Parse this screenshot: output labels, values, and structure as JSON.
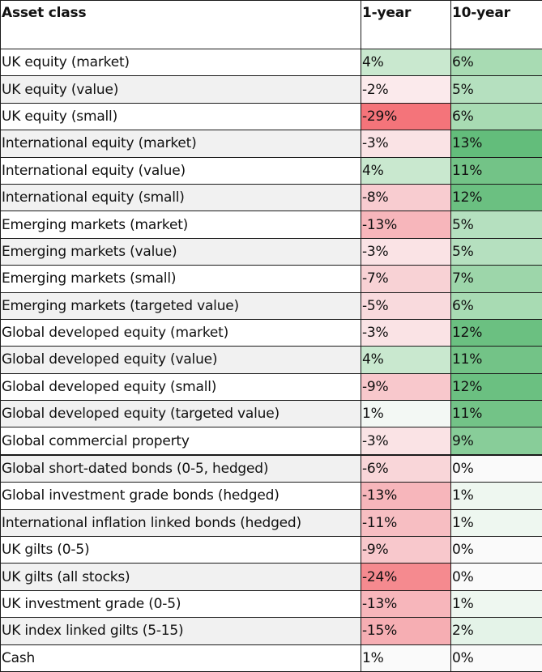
{
  "table": {
    "headers": [
      "Asset class",
      "1-year",
      "10-year"
    ],
    "rows": [
      {
        "asset": "UK equity (market)",
        "y1": "4%",
        "y10": "6%",
        "y1_color": "#c9e8cf",
        "y10_color": "#a8dbb3"
      },
      {
        "asset": "UK equity (value)",
        "y1": "-2%",
        "y10": "5%",
        "y1_color": "#fbeaec",
        "y10_color": "#b5e0bf"
      },
      {
        "asset": "UK equity (small)",
        "y1": "-29%",
        "y10": "6%",
        "y1_color": "#f4747a",
        "y10_color": "#a8dbb3"
      },
      {
        "asset": "International equity (market)",
        "y1": "-3%",
        "y10": "13%",
        "y1_color": "#fae3e5",
        "y10_color": "#63bd7b"
      },
      {
        "asset": "International equity (value)",
        "y1": "4%",
        "y10": "11%",
        "y1_color": "#c9e8cf",
        "y10_color": "#73c387"
      },
      {
        "asset": "International equity (small)",
        "y1": "-8%",
        "y10": "12%",
        "y1_color": "#f8ccd0",
        "y10_color": "#6bc081"
      },
      {
        "asset": "Emerging markets (market)",
        "y1": "-13%",
        "y10": "5%",
        "y1_color": "#f7b6bb",
        "y10_color": "#b5e0bf"
      },
      {
        "asset": "Emerging markets (value)",
        "y1": "-3%",
        "y10": "5%",
        "y1_color": "#fae3e5",
        "y10_color": "#b5e0bf"
      },
      {
        "asset": "Emerging markets (small)",
        "y1": "-7%",
        "y10": "7%",
        "y1_color": "#f8d2d5",
        "y10_color": "#9dd6aa"
      },
      {
        "asset": "Emerging markets (targeted value)",
        "y1": "-5%",
        "y10": "6%",
        "y1_color": "#f9dadd",
        "y10_color": "#a8dbb3"
      },
      {
        "asset": "Global developed equity (market)",
        "y1": "-3%",
        "y10": "12%",
        "y1_color": "#fae3e5",
        "y10_color": "#6bc081"
      },
      {
        "asset": "Global developed equity (value)",
        "y1": "4%",
        "y10": "11%",
        "y1_color": "#c9e8cf",
        "y10_color": "#73c387"
      },
      {
        "asset": "Global developed equity (small)",
        "y1": "-9%",
        "y10": "12%",
        "y1_color": "#f8c8cc",
        "y10_color": "#6bc081"
      },
      {
        "asset": "Global developed equity (targeted value)",
        "y1": "1%",
        "y10": "11%",
        "y1_color": "#f3f8f4",
        "y10_color": "#73c387"
      },
      {
        "asset": "Global commercial property",
        "y1": "-3%",
        "y10": "9%",
        "y1_color": "#fae3e5",
        "y10_color": "#88cd99"
      },
      {
        "asset": "Global short-dated bonds (0-5, hedged)",
        "y1": "-6%",
        "y10": "0%",
        "y1_color": "#f9d6d9",
        "y10_color": "#fafafa"
      },
      {
        "asset": "Global investment grade bonds (hedged)",
        "y1": "-13%",
        "y10": "1%",
        "y1_color": "#f7b6bb",
        "y10_color": "#eef7f0"
      },
      {
        "asset": "International inflation linked bonds (hedged)",
        "y1": "-11%",
        "y10": "1%",
        "y1_color": "#f7bec2",
        "y10_color": "#eef7f0"
      },
      {
        "asset": "UK gilts (0-5)",
        "y1": "-9%",
        "y10": "0%",
        "y1_color": "#f8c8cc",
        "y10_color": "#fafafa"
      },
      {
        "asset": "UK gilts (all stocks)",
        "y1": "-24%",
        "y10": "0%",
        "y1_color": "#f58a8f",
        "y10_color": "#fafafa"
      },
      {
        "asset": "UK investment grade (0-5)",
        "y1": "-13%",
        "y10": "1%",
        "y1_color": "#f7b6bb",
        "y10_color": "#eef7f0"
      },
      {
        "asset": "UK index linked gilts (5-15)",
        "y1": "-15%",
        "y10": "2%",
        "y1_color": "#f6aeb3",
        "y10_color": "#e4f3e8"
      },
      {
        "asset": "Cash",
        "y1": "1%",
        "y10": "0%",
        "y1_color": "#fafafa",
        "y10_color": "#fafafa"
      }
    ]
  }
}
